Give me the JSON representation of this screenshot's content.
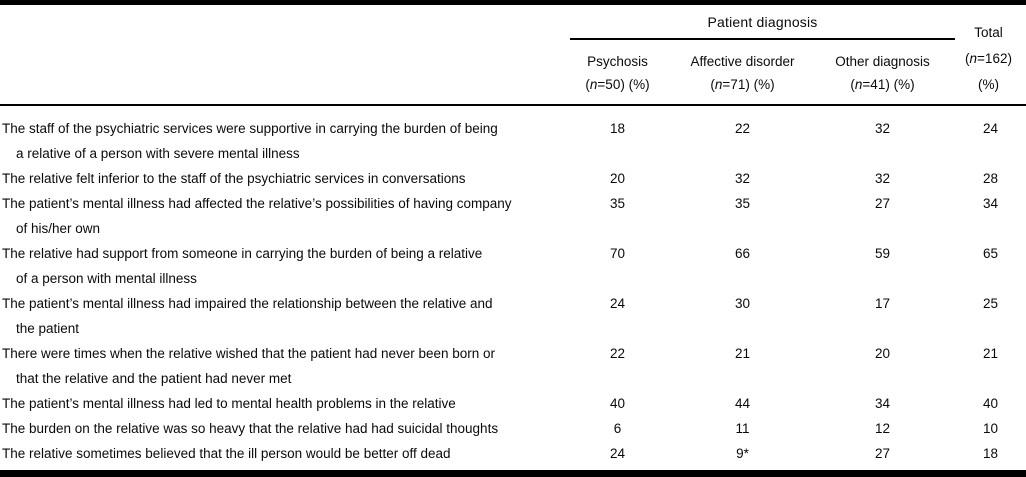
{
  "table": {
    "header": {
      "spanner_label": "Patient diagnosis",
      "columns": [
        {
          "label": "Psychosis",
          "count_prefix": "(",
          "count_var": "n",
          "count_suffix": "=50) (%)"
        },
        {
          "label": "Affective disorder",
          "count_prefix": "(",
          "count_var": "n",
          "count_suffix": "=71) (%)"
        },
        {
          "label": "Other diagnosis",
          "count_prefix": "(",
          "count_var": "n",
          "count_suffix": "=41) (%)"
        }
      ],
      "total": {
        "label": "Total",
        "count_prefix": "(",
        "count_var": "n",
        "count_suffix": "=162)",
        "percent_label": "(%)"
      }
    },
    "rows": [
      {
        "line1": "The staff of the psychiatric services were supportive in carrying the burden of being",
        "line2": "a relative of a person with severe mental illness",
        "values": [
          "18",
          "22",
          "32",
          "24"
        ]
      },
      {
        "line1": "The relative felt inferior to the staff of the psychiatric services in conversations",
        "line2": "",
        "values": [
          "20",
          "32",
          "32",
          "28"
        ]
      },
      {
        "line1": "The patient’s mental illness had affected the relative’s possibilities of having company",
        "line2": "of his/her own",
        "values": [
          "35",
          "35",
          "27",
          "34"
        ]
      },
      {
        "line1": "The relative had support from someone in carrying the burden of being a relative",
        "line2": "of a person with mental illness",
        "values": [
          "70",
          "66",
          "59",
          "65"
        ]
      },
      {
        "line1": "The patient’s mental illness had impaired the relationship between the relative and",
        "line2": "the patient",
        "values": [
          "24",
          "30",
          "17",
          "25"
        ]
      },
      {
        "line1": "There were times when the relative wished that the patient had never been born or",
        "line2": "that the relative and the patient had never met",
        "values": [
          "22",
          "21",
          "20",
          "21"
        ]
      },
      {
        "line1": "The patient’s mental illness had led to mental health problems in the relative",
        "line2": "",
        "values": [
          "40",
          "44",
          "34",
          "40"
        ]
      },
      {
        "line1": "The burden on the relative was so heavy that the relative had had suicidal thoughts",
        "line2": "",
        "values": [
          "6",
          "11",
          "12",
          "10"
        ]
      },
      {
        "line1": "The relative sometimes believed that the ill person would be better off dead",
        "line2": "",
        "values": [
          "24",
          "9*",
          "27",
          "18"
        ]
      }
    ]
  }
}
